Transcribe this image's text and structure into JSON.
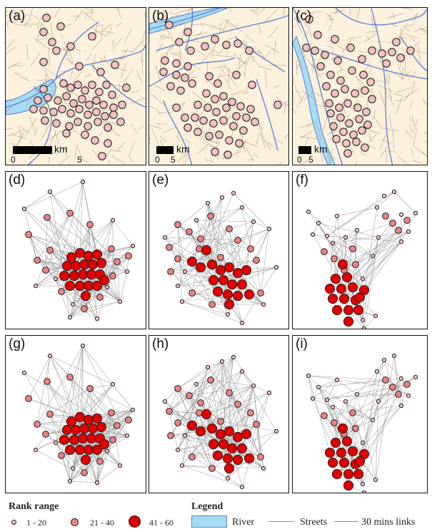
{
  "panels": {
    "a": {
      "label": "(a)",
      "scale_km": "km",
      "scale_zero": "0",
      "scale_five": "5"
    },
    "b": {
      "label": "(b)",
      "scale_km": "km",
      "scale_zero": "0",
      "scale_five": "5"
    },
    "c": {
      "label": "(c)",
      "scale_km": "km",
      "scale_zero": "0",
      "scale_five": "5"
    },
    "d": {
      "label": "(d)"
    },
    "e": {
      "label": "(e)"
    },
    "f": {
      "label": "(f)"
    },
    "g": {
      "label": "(g)"
    },
    "h": {
      "label": "(h)"
    },
    "i": {
      "label": "(i)"
    }
  },
  "legend": {
    "rank_title": "Rank range",
    "rank_1": "1 - 20",
    "rank_2": "21 - 40",
    "rank_3": "41 - 60",
    "legend_title": "Legend",
    "river": "River",
    "streets": "Streets",
    "links": "30 mins links"
  },
  "colors": {
    "river": "#5a7fd6",
    "river_fill": "#a6dcf2",
    "streets": "#b08c7a",
    "map_bg": "#fbf1dc",
    "links": "#a0a0a0",
    "rank_1": "#f3c2c2",
    "rank_2": "#e98383",
    "rank_3": "#e10000"
  }
}
